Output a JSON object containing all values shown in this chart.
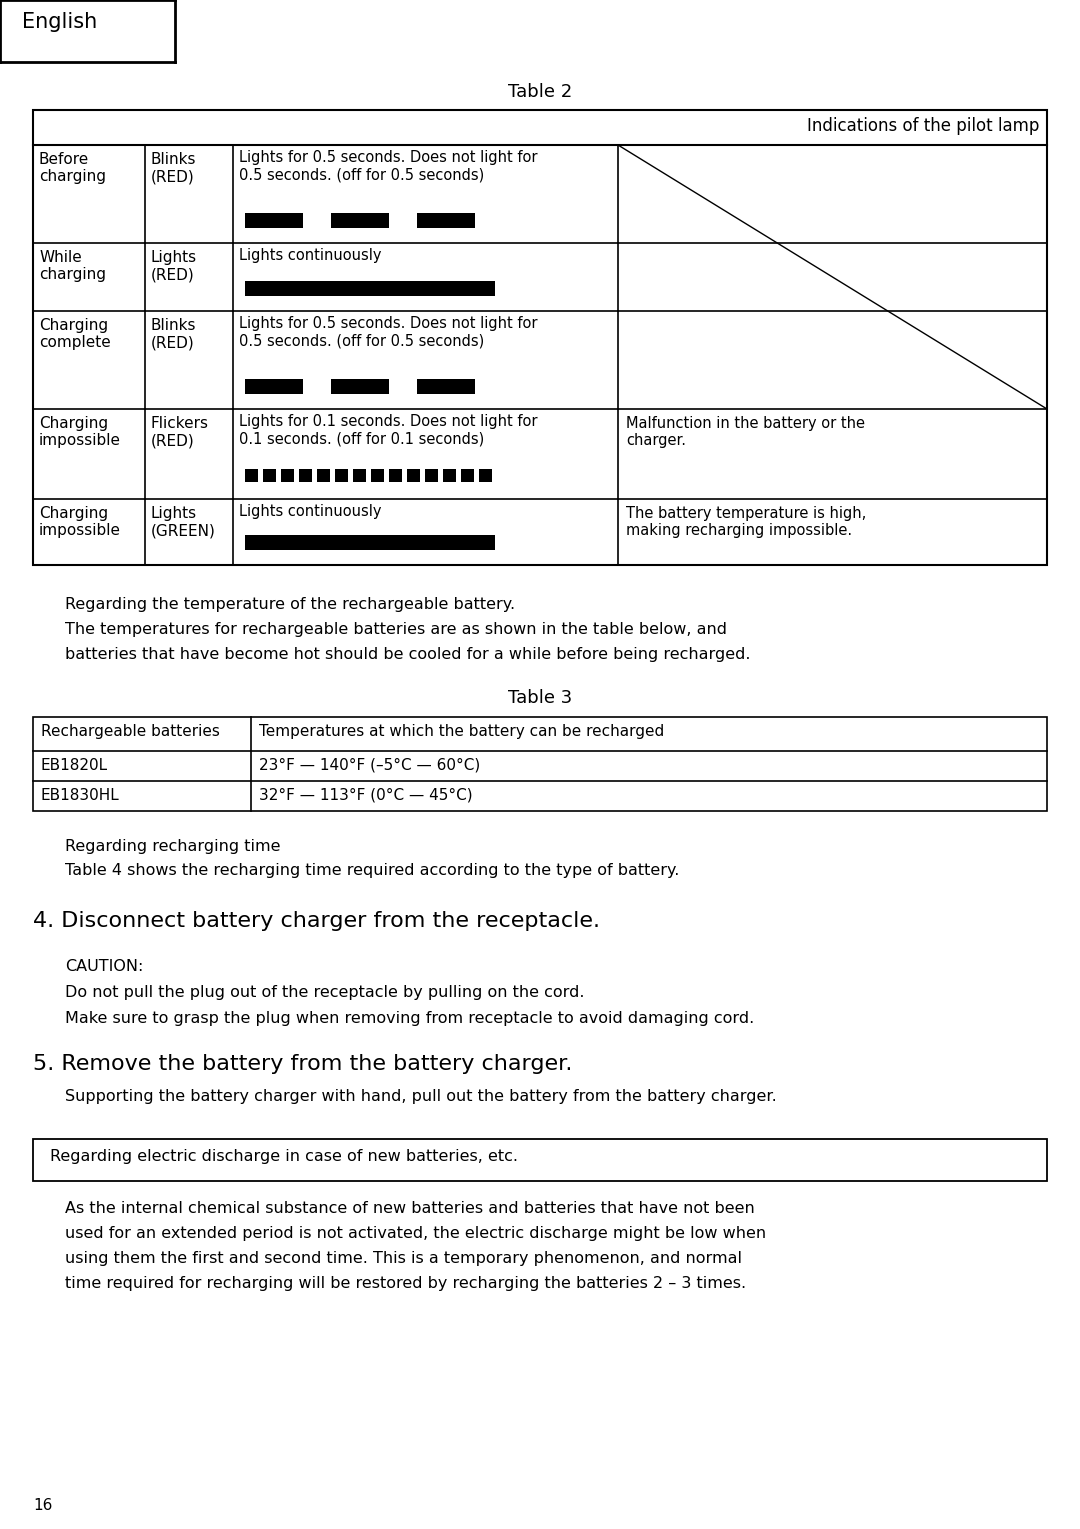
{
  "bg_color": "#ffffff",
  "page_number": "16",
  "header_label": "English",
  "table2_title": "Table 2",
  "table2_header": "Indications of the pilot lamp",
  "table2_rows": [
    {
      "col1": "Before\ncharging",
      "col2": "Blinks\n(RED)",
      "col3_text": "Lights for 0.5 seconds. Does not light for\n0.5 seconds. (off for 0.5 seconds)",
      "col3_bars": "dashed_3",
      "col4": ""
    },
    {
      "col1": "While\ncharging",
      "col2": "Lights\n(RED)",
      "col3_text": "Lights continuously",
      "col3_bars": "solid_1",
      "col4": ""
    },
    {
      "col1": "Charging\ncomplete",
      "col2": "Blinks\n(RED)",
      "col3_text": "Lights for 0.5 seconds. Does not light for\n0.5 seconds. (off for 0.5 seconds)",
      "col3_bars": "dashed_3",
      "col4": ""
    },
    {
      "col1": "Charging\nimpossible",
      "col2": "Flickers\n(RED)",
      "col3_text": "Lights for 0.1 seconds. Does not light for\n0.1 seconds. (off for 0.1 seconds)",
      "col3_bars": "many_dots",
      "col4": "Malfunction in the battery or the\ncharger."
    },
    {
      "col1": "Charging\nimpossible",
      "col2": "Lights\n(GREEN)",
      "col3_text": "Lights continuously",
      "col3_bars": "solid_1",
      "col4": "The battery temperature is high,\nmaking recharging impossible."
    }
  ],
  "para1_line1": "Regarding the temperature of the rechargeable battery.",
  "para1_line2": "The temperatures for rechargeable batteries are as shown in the table below, and",
  "para1_line3": "batteries that have become hot should be cooled for a while before being recharged.",
  "table3_title": "Table 3",
  "table3_header_col1": "Rechargeable batteries",
  "table3_header_col2": "Temperatures at which the battery can be recharged",
  "table3_rows": [
    {
      "col1": "EB1820L",
      "col2": "23°F — 140°F (–5°C — 60°C)"
    },
    {
      "col1": "EB1830HL",
      "col2": "32°F — 113°F (0°C — 45°C)"
    }
  ],
  "para2_line1": "Regarding recharging time",
  "para2_line2": "Table 4 shows the recharging time required according to the type of battery.",
  "step4_heading": "4. Disconnect battery charger from the receptacle.",
  "step4_caution_label": "CAUTION:",
  "step4_caution_line1": "Do not pull the plug out of the receptacle by pulling on the cord.",
  "step4_caution_line2": "Make sure to grasp the plug when removing from receptacle to avoid damaging cord.",
  "step5_heading": "5. Remove the battery from the battery charger.",
  "step5_line1": "Supporting the battery charger with hand, pull out the battery from the battery charger.",
  "box_text": "Regarding electric discharge in case of new batteries, etc.",
  "final_para_line1": "As the internal chemical substance of new batteries and batteries that have not been",
  "final_para_line2": "used for an extended period is not activated, the electric discharge might be low when",
  "final_para_line3": "using them the first and second time. This is a temporary phenomenon, and normal",
  "final_para_line4": "time required for recharging will be restored by recharging the batteries 2 – 3 times."
}
